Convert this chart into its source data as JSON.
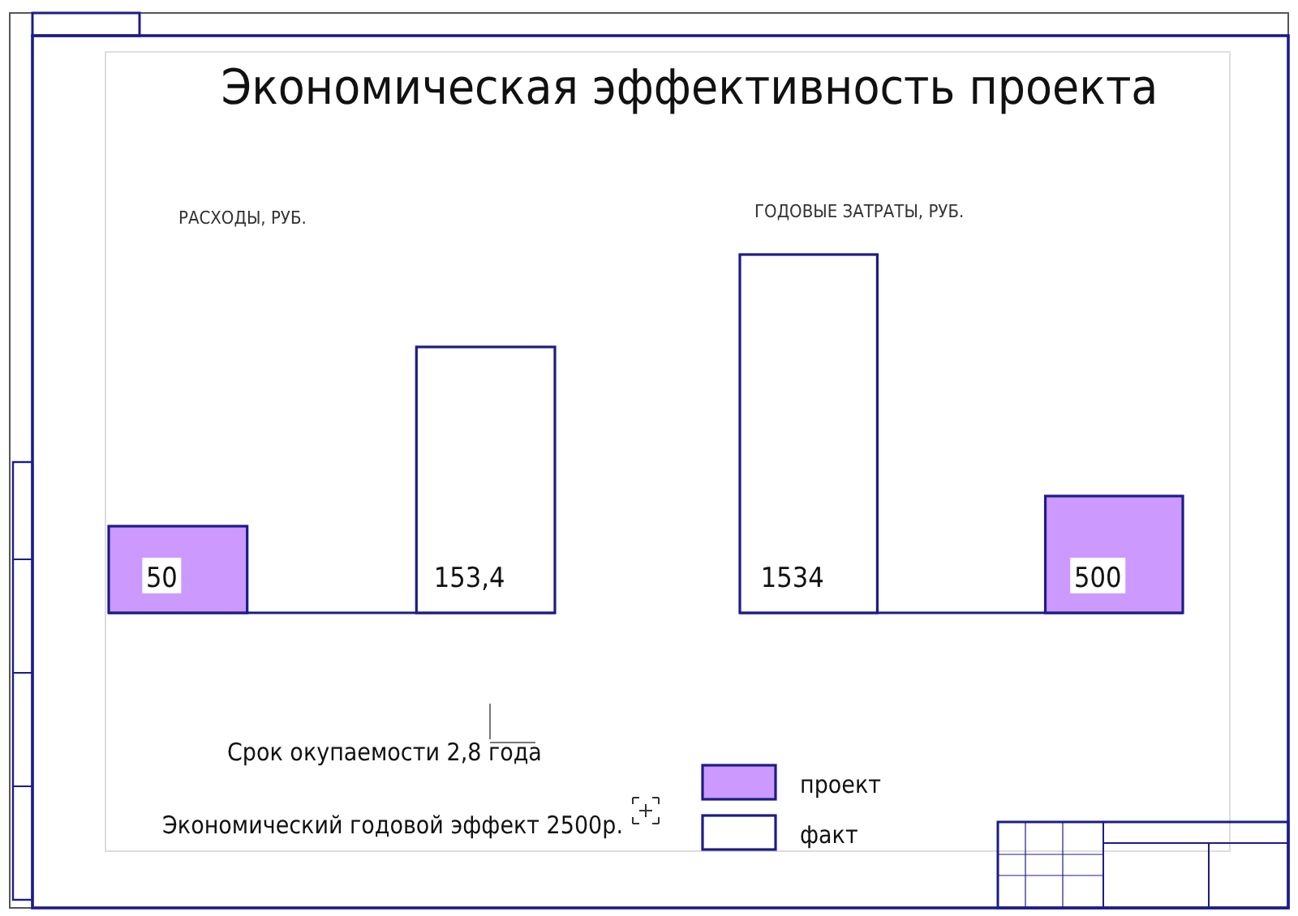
{
  "chart_data": [
    {
      "type": "bar",
      "title": "Экономическая эффективность проекта",
      "subtitle": "РАСХОДЫ, РУБ.",
      "stacked": true,
      "categories": [
        null,
        null
      ],
      "series": [
        {
          "color": "#cc99ff",
          "values": [
            50,
            null
          ],
          "value_labels": [
            "50",
            null
          ]
        },
        {
          "color": "#ffffff",
          "values": [
            null,
            153.4
          ],
          "value_labels": [
            null,
            "153,4"
          ]
        }
      ],
      "annotations": [
        "Срок окупаемости 2,8 года",
        "Экономический годовой эффект 2500р."
      ]
    },
    {
      "type": "bar",
      "subtitle": "ГОДОВЫЕ ЗАТРАТЫ, РУБ.",
      "stacked": true,
      "categories": [
        null,
        null
      ],
      "series": [
        {
          "name": "проект",
          "color": "#cc99ff",
          "values": [
            null,
            500
          ],
          "value_labels": [
            null,
            "500"
          ]
        },
        {
          "name": "факт",
          "color": "#ffffff",
          "values": [
            1534,
            null
          ],
          "value_labels": [
            "1534",
            null
          ]
        }
      ],
      "legend": "bottom"
    }
  ]
}
